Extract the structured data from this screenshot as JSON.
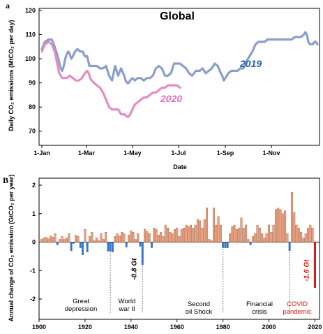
{
  "chart_data": [
    {
      "panel": "a",
      "type": "line",
      "title": "Global",
      "xlabel": "Date",
      "ylabel": "Daily CO₂ emissions (MtCO₂ per day)",
      "ylim": [
        65,
        120
      ],
      "yticks": [
        70,
        80,
        90,
        100,
        110,
        120
      ],
      "xticks": [
        "1-Jan",
        "1-Mar",
        "1-May",
        "1-Jul",
        "1-Sep",
        "1-Nov"
      ],
      "xtick_days": [
        1,
        60,
        121,
        182,
        244,
        305
      ],
      "xlim_days": [
        1,
        366
      ],
      "grid": false,
      "series": [
        {
          "name": "2019",
          "color": "#8c9ec9",
          "label_color": "#1f5fae",
          "x": [
            1,
            5,
            10,
            14,
            18,
            22,
            26,
            28,
            30,
            32,
            34,
            36,
            38,
            40,
            42,
            45,
            48,
            52,
            55,
            58,
            61,
            64,
            67,
            70,
            74,
            78,
            82,
            86,
            90,
            94,
            98,
            102,
            106,
            110,
            112,
            114,
            116,
            118,
            121,
            124,
            128,
            132,
            136,
            140,
            144,
            148,
            152,
            156,
            160,
            164,
            168,
            172,
            176,
            180,
            184,
            188,
            192,
            196,
            200,
            205,
            210,
            214,
            218,
            222,
            226,
            230,
            234,
            238,
            240,
            242,
            244,
            248,
            252,
            256,
            260,
            264,
            268,
            272,
            276,
            280,
            284,
            288,
            292,
            296,
            300,
            304,
            308,
            312,
            316,
            320,
            324,
            328,
            332,
            336,
            340,
            344,
            348,
            350,
            352,
            354,
            356,
            358,
            360,
            362,
            364,
            366
          ],
          "y": [
            104,
            107,
            108,
            108,
            105,
            101,
            96,
            95,
            97,
            100,
            102,
            103,
            102,
            100,
            101,
            103,
            104,
            103,
            103,
            101,
            101,
            97,
            97,
            97,
            97,
            96,
            96,
            97,
            93,
            91,
            97,
            93,
            96,
            93,
            91,
            90,
            90,
            91,
            92,
            91,
            92,
            92,
            91,
            92,
            92,
            93,
            96,
            97,
            96,
            93,
            93,
            94,
            98,
            98,
            98,
            97,
            96,
            94,
            93,
            95,
            95,
            96,
            94,
            95,
            96,
            98,
            97,
            94,
            93,
            91,
            92,
            94,
            95,
            95,
            95,
            96,
            96,
            99,
            101,
            103,
            106,
            107,
            107,
            107,
            108,
            108,
            108,
            108,
            108,
            108,
            108,
            108,
            108,
            109,
            109,
            109,
            110,
            111,
            110,
            107,
            106,
            106,
            106,
            107,
            107,
            106
          ]
        },
        {
          "name": "2020",
          "color": "#e58cc3",
          "label_color": "#e070bd",
          "x": [
            1,
            5,
            10,
            14,
            18,
            20,
            22,
            24,
            26,
            28,
            30,
            34,
            38,
            42,
            46,
            50,
            54,
            58,
            61,
            63,
            65,
            67,
            70,
            74,
            78,
            82,
            86,
            90,
            94,
            98,
            102,
            106,
            110,
            114,
            116,
            118,
            121,
            124,
            128,
            132,
            136,
            140,
            144,
            148,
            152,
            156,
            160,
            164,
            168,
            172,
            176,
            180,
            184
          ],
          "y": [
            103,
            106,
            107,
            106,
            103,
            100,
            97,
            94,
            93,
            92,
            92,
            92,
            93,
            92,
            91,
            91,
            92,
            94,
            95,
            94,
            92,
            91,
            90,
            89,
            88,
            86,
            83,
            80,
            79,
            79,
            79,
            77,
            77,
            76,
            76,
            77,
            79,
            81,
            82,
            83,
            84,
            84,
            85,
            86,
            86,
            87,
            88,
            88,
            89,
            89,
            89,
            89,
            88
          ]
        }
      ]
    },
    {
      "panel": "B",
      "type": "bar",
      "xlabel": "",
      "ylabel": "Annual change of CO₂ emission (GtCO₂ per year)",
      "xlim": [
        1900,
        2022
      ],
      "ylim": [
        -2.6,
        2.0
      ],
      "yticks": [
        -2,
        -1,
        0,
        1,
        2
      ],
      "xticks": [
        1900,
        1920,
        1940,
        1960,
        1980,
        2000,
        2020
      ],
      "positive_color": "#e9a383",
      "positive_edge": "#a85a3a",
      "negative_color": "#3a78c9",
      "covid_color": "#c7161a",
      "years": [
        1901,
        1902,
        1903,
        1904,
        1905,
        1906,
        1907,
        1908,
        1909,
        1910,
        1911,
        1912,
        1913,
        1914,
        1915,
        1916,
        1917,
        1918,
        1919,
        1920,
        1921,
        1922,
        1923,
        1924,
        1925,
        1926,
        1927,
        1928,
        1929,
        1930,
        1931,
        1932,
        1933,
        1934,
        1935,
        1936,
        1937,
        1938,
        1939,
        1940,
        1941,
        1942,
        1943,
        1944,
        1945,
        1946,
        1947,
        1948,
        1949,
        1950,
        1951,
        1952,
        1953,
        1954,
        1955,
        1956,
        1957,
        1958,
        1959,
        1960,
        1961,
        1962,
        1963,
        1964,
        1965,
        1966,
        1967,
        1968,
        1969,
        1970,
        1971,
        1972,
        1973,
        1974,
        1975,
        1976,
        1977,
        1978,
        1979,
        1980,
        1981,
        1982,
        1983,
        1984,
        1985,
        1986,
        1987,
        1988,
        1989,
        1990,
        1991,
        1992,
        1993,
        1994,
        1995,
        1996,
        1997,
        1998,
        1999,
        2000,
        2001,
        2002,
        2003,
        2004,
        2005,
        2006,
        2007,
        2008,
        2009,
        2010,
        2011,
        2012,
        2013,
        2014,
        2015,
        2016,
        2017,
        2018,
        2019,
        2020
      ],
      "values": [
        0.1,
        0.15,
        0.18,
        0.12,
        0.22,
        0.18,
        0.3,
        -0.1,
        0.1,
        0.2,
        0.1,
        0.15,
        0.3,
        -0.3,
        -0.05,
        0.25,
        0.2,
        -0.2,
        -0.45,
        0.45,
        -0.35,
        0.2,
        0.35,
        0.05,
        0.15,
        0.05,
        0.3,
        0.1,
        0.35,
        -0.32,
        -0.33,
        -0.35,
        0.2,
        0.3,
        0.22,
        0.35,
        0.3,
        -0.18,
        0.25,
        0.4,
        0.35,
        0.1,
        0.3,
        -0.15,
        -0.8,
        0.45,
        0.38,
        0.3,
        -0.2,
        0.5,
        0.45,
        0.25,
        0.35,
        0.2,
        0.6,
        0.5,
        0.35,
        0.3,
        0.45,
        0.5,
        0.2,
        0.45,
        0.5,
        0.6,
        0.55,
        0.6,
        0.5,
        0.6,
        0.8,
        0.75,
        0.5,
        0.8,
        1.2,
        0.1,
        0.05,
        1.2,
        0.6,
        0.9,
        0.6,
        -0.2,
        -0.2,
        -0.2,
        0.3,
        0.55,
        0.6,
        0.45,
        0.5,
        0.85,
        0.5,
        0.6,
        0.1,
        -0.1,
        0.2,
        0.3,
        0.6,
        0.5,
        0.3,
        0.15,
        0.3,
        0.6,
        0.35,
        0.6,
        1.15,
        1.2,
        1.15,
        1.0,
        1.1,
        0.3,
        -0.3,
        1.75,
        1.05,
        0.6,
        0.5,
        0.35,
        0.15,
        0.3,
        0.5,
        0.6,
        0.5,
        -1.6
      ],
      "annotations": [
        {
          "year": 1931,
          "lines": [
            "Great",
            "depression"
          ]
        },
        {
          "year": 1945,
          "lines": [
            "World",
            "war II"
          ]
        },
        {
          "year": 1980,
          "lines": [
            "Second",
            "oil Shock"
          ]
        },
        {
          "year": 2009,
          "lines": [
            "Financial",
            "crisis"
          ]
        },
        {
          "year": 2020,
          "lines": [
            "COVID",
            "pandemic"
          ]
        }
      ],
      "value_labels": [
        {
          "year": 1945,
          "text": "-0.8 Gt"
        },
        {
          "year": 2020,
          "text": "-1.6 Gt"
        }
      ]
    }
  ]
}
